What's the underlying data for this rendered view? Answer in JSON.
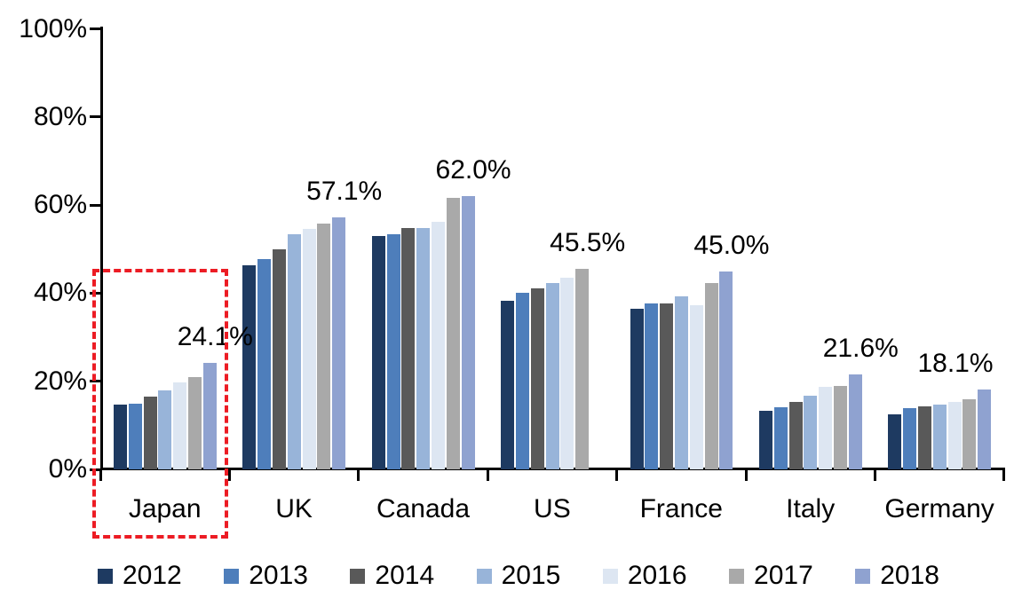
{
  "chart_data": {
    "type": "bar",
    "title": "",
    "xlabel": "",
    "ylabel": "",
    "categories": [
      "Japan",
      "UK",
      "Canada",
      "US",
      "France",
      "Italy",
      "Germany"
    ],
    "series": [
      {
        "name": "2012",
        "color": "#1E3A61",
        "values": [
          14.8,
          46.3,
          53.0,
          38.2,
          36.5,
          13.2,
          12.4
        ]
      },
      {
        "name": "2013",
        "color": "#4E7EBB",
        "values": [
          15.0,
          47.8,
          53.4,
          40.1,
          37.7,
          14.0,
          13.9
        ]
      },
      {
        "name": "2014",
        "color": "#595959",
        "values": [
          16.6,
          49.9,
          54.8,
          41.1,
          37.7,
          15.3,
          14.2
        ]
      },
      {
        "name": "2015",
        "color": "#98B4D9",
        "values": [
          17.9,
          53.3,
          54.7,
          42.2,
          39.3,
          16.7,
          14.7
        ]
      },
      {
        "name": "2016",
        "color": "#DDE6F2",
        "values": [
          19.8,
          54.5,
          56.1,
          43.5,
          37.3,
          18.8,
          15.4
        ]
      },
      {
        "name": "2017",
        "color": "#A9A9A9",
        "values": [
          20.9,
          55.8,
          61.6,
          45.5,
          42.3,
          19.0,
          15.9
        ]
      },
      {
        "name": "2018",
        "color": "#8FA2D0",
        "values": [
          24.1,
          57.1,
          62.0,
          null,
          45.0,
          21.6,
          18.1
        ]
      }
    ],
    "data_labels": [
      "24.1%",
      "57.1%",
      "62.0%",
      "45.5%",
      "45.0%",
      "21.6%",
      "18.1%"
    ],
    "y_axis": {
      "ticks": [
        "0%",
        "20%",
        "40%",
        "60%",
        "80%",
        "100%"
      ],
      "min": 0,
      "max": 100
    },
    "grid": false,
    "legend_position": "bottom",
    "notes": "US group has no 2018 bar; 45.5% label sits over the 2017 bar"
  },
  "annotation": {
    "highlight_target": "Japan",
    "highlight_color": "#EC1C24",
    "highlight_style": "dashed-rectangle"
  }
}
